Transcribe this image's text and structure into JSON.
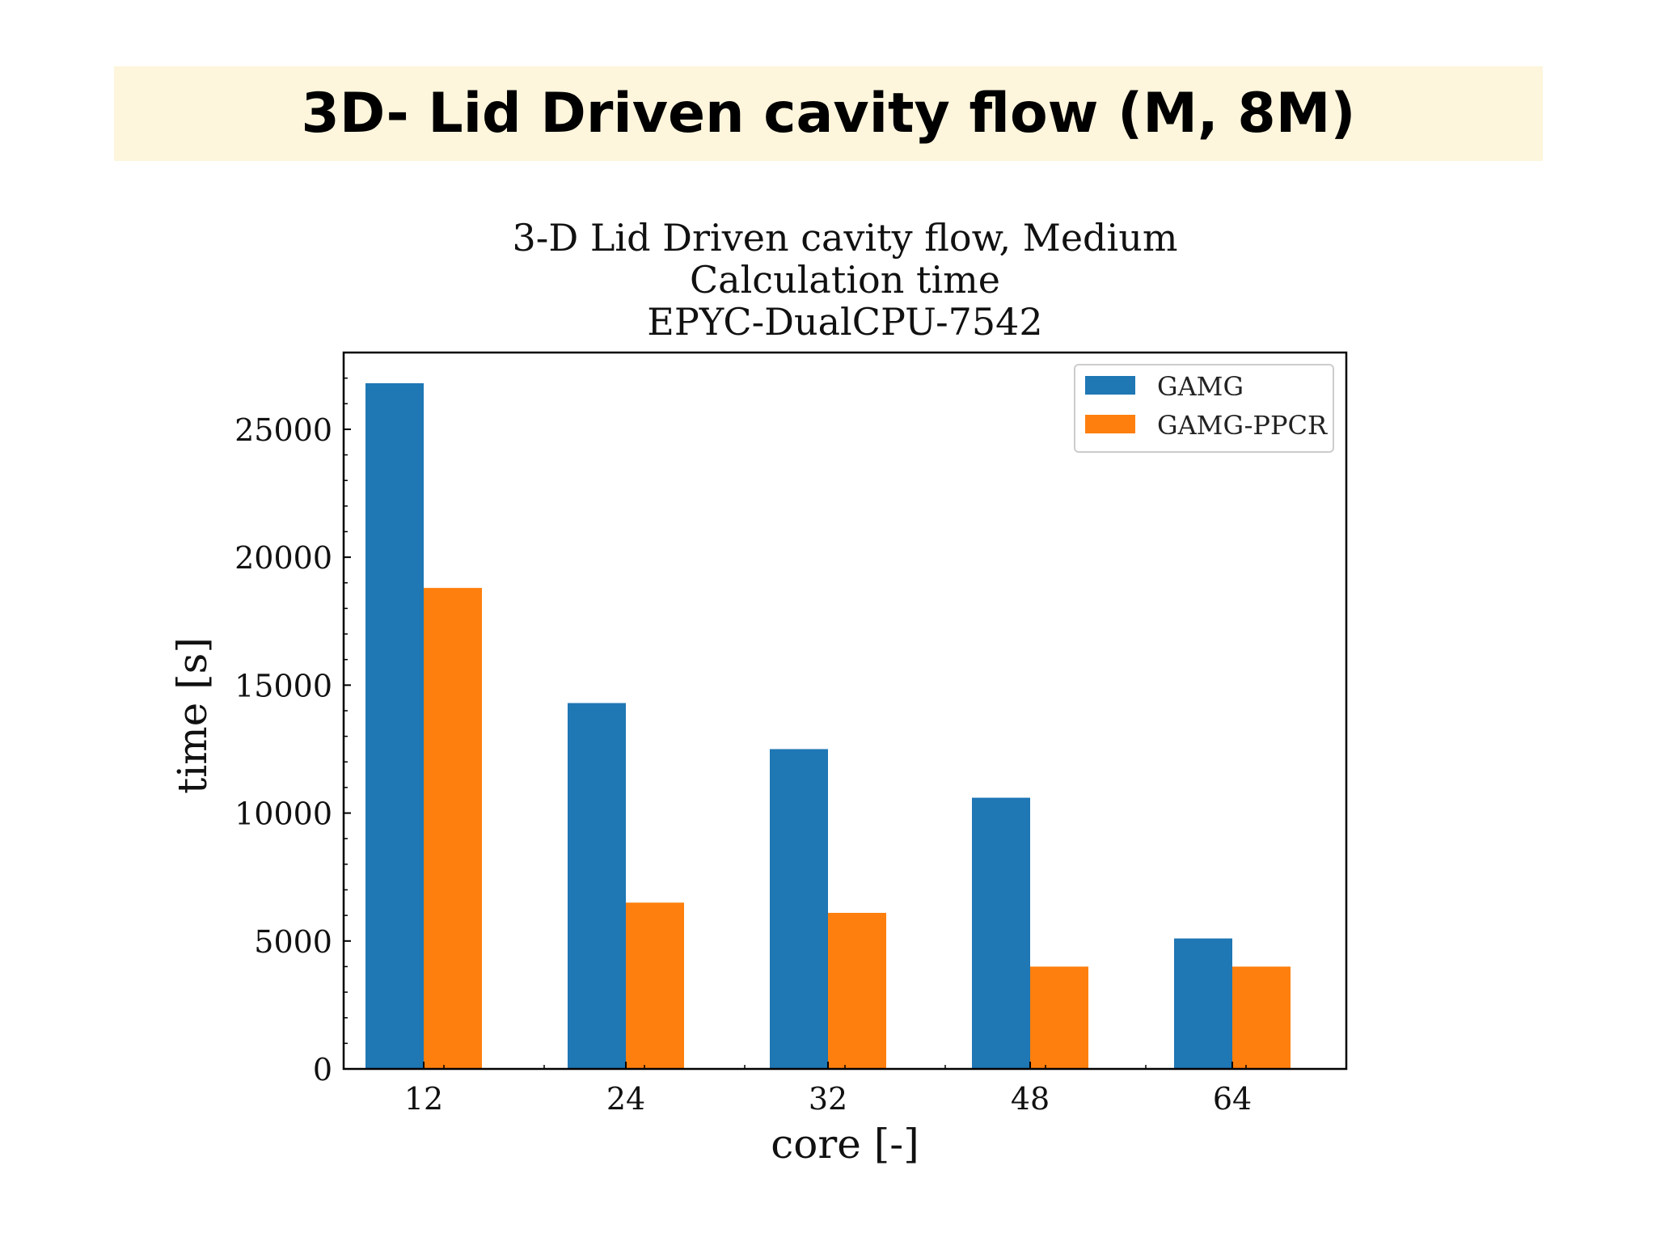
{
  "slide": {
    "title": "3D- Lid Driven cavity flow (M, 8M)"
  },
  "colors": {
    "banner": "#fdf5dc",
    "gamg": "#1f77b4",
    "gamg_ppcr": "#ff7f0e"
  },
  "chart_data": {
    "type": "bar",
    "title_lines": [
      "3-D Lid Driven cavity flow, Medium",
      "Calculation time",
      "EPYC-DualCPU-7542"
    ],
    "xlabel": "core [-]",
    "ylabel": "time [s]",
    "categories": [
      "12",
      "24",
      "32",
      "48",
      "64"
    ],
    "series": [
      {
        "name": "GAMG",
        "color": "#1f77b4",
        "values": [
          26800,
          14300,
          12500,
          10600,
          5100
        ]
      },
      {
        "name": "GAMG-PPCR",
        "color": "#ff7f0e",
        "values": [
          18800,
          6500,
          6100,
          4000,
          4000
        ]
      }
    ],
    "ylim": [
      0,
      28000
    ],
    "yticks": [
      0,
      5000,
      10000,
      15000,
      20000,
      25000
    ],
    "legend_position": "top-right",
    "grid": false
  }
}
